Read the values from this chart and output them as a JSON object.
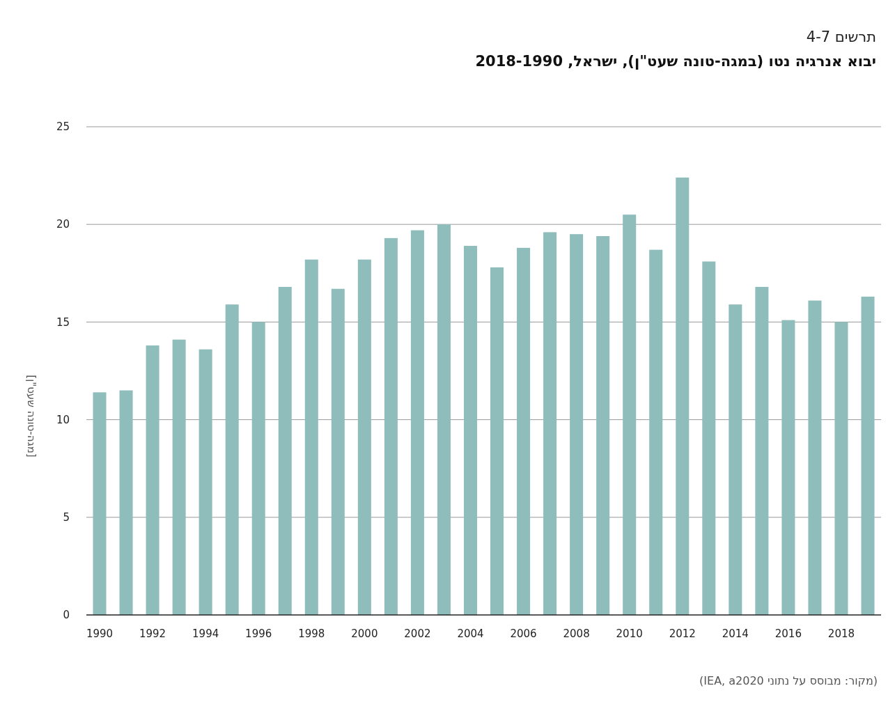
{
  "chart_data": {
    "type": "bar",
    "title": "יבוא אנרגיה נטו (במגה-טונה שעט\"ן), ישראל, 2018-1990",
    "subtitle": "תרשים 4-7",
    "ylabel": "[מגה-טונה שעט\"ן]",
    "annotations": [
      "(מקור: מבוסס על נתוני IEA, a2020)"
    ],
    "categories": [
      "1990",
      null,
      "1992",
      null,
      "1994",
      null,
      "1996",
      null,
      "1998",
      null,
      "2000",
      null,
      "2002",
      null,
      "2004",
      null,
      "2006",
      null,
      "2008",
      null,
      "2010",
      null,
      "2012",
      null,
      "2014",
      null,
      "2016",
      null,
      "2018",
      null
    ],
    "values": [
      11.4,
      11.5,
      13.8,
      14.1,
      13.6,
      15.9,
      15.0,
      16.8,
      18.2,
      16.7,
      18.2,
      19.3,
      19.7,
      20.0,
      18.9,
      17.8,
      18.8,
      19.6,
      19.5,
      19.4,
      20.5,
      18.7,
      22.4,
      18.1,
      15.9,
      16.8,
      15.1,
      16.1,
      15.0,
      16.3
    ],
    "color": "#8fbdbc",
    "ylim": [
      0,
      25
    ],
    "yticks": [
      0,
      5,
      10,
      15,
      20,
      25
    ],
    "grid": "y"
  }
}
